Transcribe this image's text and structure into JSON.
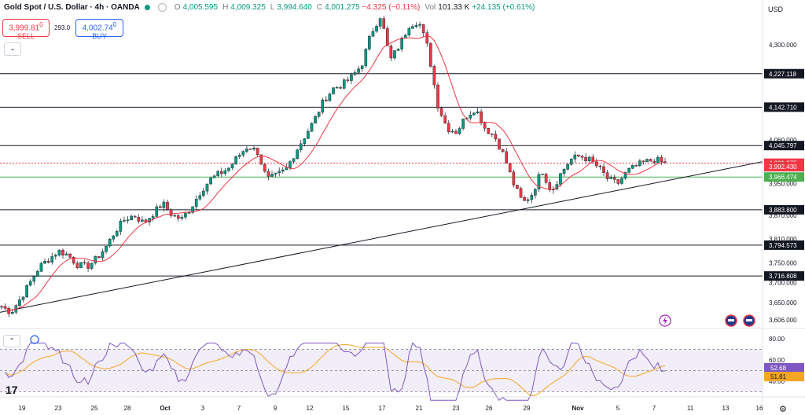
{
  "header": {
    "symbol": "Gold Spot / U.S. Dollar · 4h · OANDA",
    "open_label": "O",
    "open": "4,005.595",
    "high_label": "H",
    "high": "4,009.325",
    "low_label": "L",
    "low": "3,994.640",
    "close_label": "C",
    "close": "4,001.275",
    "change": "−4.325 (−0.11%)",
    "volume_label": "Vol",
    "volume": "101.33 K",
    "vol_change": "+24.135 (+0.61%)"
  },
  "trade": {
    "sell_price": "3,999.81",
    "sell_sup": "0",
    "sell_label": "SELL",
    "spread": "293.0",
    "buy_price": "4,002.74",
    "buy_sup": "0",
    "buy_label": "BUY"
  },
  "currency": "USD",
  "colors": {
    "up": "#089981",
    "down": "#f23645",
    "ma": "#f23645",
    "rsi": "#7e57c2",
    "rsi_ma": "#f5a623",
    "support": "#4caf50"
  },
  "chart_data": {
    "type": "candlestick",
    "price_axis": {
      "min": 3580,
      "max": 4420,
      "ticks": [
        4300,
        4227.118,
        4142.71,
        4060,
        4045.797,
        3950,
        3883.8,
        3870,
        3810,
        3794.573,
        3750,
        3716.808,
        3700,
        3650,
        3606
      ],
      "tick_labels": [
        "4,300.000",
        "4,227.118",
        "4,142.710",
        "4,060.000",
        "4,045.797",
        "3,950.000",
        "3,883.800",
        "3,870.000",
        "3,810.000",
        "3,794.573",
        "3,750.000",
        "3,716.808",
        "3,700.000",
        "3,650.000",
        "3,606.000"
      ]
    },
    "date_axis": {
      "labels": [
        "19",
        "23",
        "25",
        "28",
        "Oct",
        "3",
        "7",
        "9",
        "12",
        "15",
        "17",
        "21",
        "23",
        "26",
        "29",
        "Nov",
        "5",
        "7",
        "11",
        "13",
        "16"
      ]
    },
    "horizontal_levels": [
      4227.118,
      4142.71,
      4045.797,
      3883.8,
      3794.573,
      3716.808
    ],
    "level_labels": [
      "4,227.118",
      "4,142.710",
      "4,045.797",
      "3,883.800",
      "3,794.573",
      "3,716.808"
    ],
    "support_level": 3966.474,
    "support_label": "3,966.474",
    "current_price": 4001.275,
    "current_price_label": "4,001.275",
    "ma_value_label": "3,992.430",
    "trendline": {
      "from": {
        "date": "Sep 18",
        "price": 3625
      },
      "to": {
        "date": "Nov 16",
        "price": 4005
      }
    },
    "rsi": {
      "axis_labels": [
        "80.00",
        "60.00",
        "40.00"
      ],
      "upper": 70,
      "mid": 50,
      "lower": 30,
      "value": 52.68,
      "value_label": "52.68",
      "ma_value": 51.81,
      "ma_label": "51.81"
    },
    "price_path": [
      3640,
      3625,
      3660,
      3700,
      3740,
      3760,
      3780,
      3770,
      3745,
      3740,
      3760,
      3790,
      3830,
      3860,
      3870,
      3850,
      3875,
      3900,
      3870,
      3860,
      3890,
      3930,
      3960,
      3975,
      3990,
      4020,
      4045,
      4030,
      3960,
      3970,
      3985,
      4030,
      4070,
      4110,
      4160,
      4190,
      4200,
      4220,
      4250,
      4330,
      4375,
      4260,
      4300,
      4350,
      4360,
      4290,
      4150,
      4090,
      4080,
      4120,
      4140,
      4090,
      4070,
      4020,
      3950,
      3900,
      3925,
      3985,
      3930,
      3975,
      4010,
      4020,
      4010,
      3990,
      3960,
      3950,
      3980,
      3995,
      4005,
      4010,
      4001
    ]
  },
  "icons": [
    "eye-icon",
    "lightning-icon",
    "flag-icon",
    "flag-icon",
    "tradingview-logo",
    "gear-icon"
  ]
}
